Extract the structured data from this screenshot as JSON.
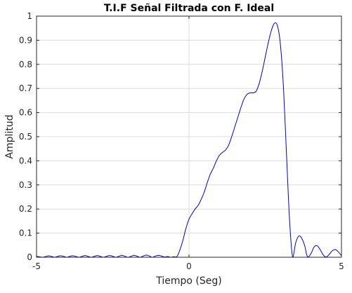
{
  "chart_data": {
    "type": "line",
    "title": "T.I.F Señal Filtrada con F. Ideal",
    "xlabel": "Tiempo (Seg)",
    "ylabel": "Amplitud",
    "xlim": [
      -5,
      5
    ],
    "ylim": [
      0,
      1
    ],
    "grid": true,
    "x_ticks": [
      "-5",
      "0",
      "5"
    ],
    "y_ticks": [
      "0",
      "0.1",
      "0.2",
      "0.3",
      "0.4",
      "0.5",
      "0.6",
      "0.7",
      "0.8",
      "0.9",
      "1"
    ],
    "x_tick_values": [
      -5,
      0,
      5
    ],
    "y_tick_values": [
      0,
      0.1,
      0.2,
      0.3,
      0.4,
      0.5,
      0.6,
      0.7,
      0.8,
      0.9,
      1
    ],
    "series": [
      {
        "color": "#0000cc",
        "x": [
          -5.0,
          -4.9,
          -4.8,
          -4.7,
          -4.6,
          -4.5,
          -4.4,
          -4.3,
          -4.2,
          -4.1,
          -4.0,
          -3.9,
          -3.8,
          -3.7,
          -3.6,
          -3.5,
          -3.4,
          -3.3,
          -3.2,
          -3.1,
          -3.0,
          -2.9,
          -2.8,
          -2.7,
          -2.6,
          -2.5,
          -2.4,
          -2.3,
          -2.2,
          -2.1,
          -2.0,
          -1.9,
          -1.8,
          -1.7,
          -1.6,
          -1.5,
          -1.4,
          -1.3,
          -1.2,
          -1.1,
          -1.0,
          -0.9,
          -0.8,
          -0.7,
          -0.6,
          -0.5,
          -0.4,
          -0.3,
          -0.2,
          -0.1,
          0.0,
          0.1,
          0.2,
          0.3,
          0.4,
          0.5,
          0.6,
          0.7,
          0.8,
          0.9,
          1.0,
          1.1,
          1.2,
          1.3,
          1.4,
          1.5,
          1.6,
          1.7,
          1.8,
          1.9,
          2.0,
          2.1,
          2.2,
          2.3,
          2.4,
          2.5,
          2.6,
          2.7,
          2.8,
          2.9,
          3.0,
          3.1,
          3.2,
          3.3,
          3.4,
          3.5,
          3.6,
          3.7,
          3.8,
          3.85,
          3.9,
          4.0,
          4.1,
          4.2,
          4.3,
          4.4,
          4.5,
          4.6,
          4.7,
          4.8,
          4.9,
          5.0
        ],
        "y": [
          0.004,
          0.002,
          0.0,
          0.003,
          0.006,
          0.003,
          0.0,
          0.004,
          0.006,
          0.003,
          0.0,
          0.004,
          0.006,
          0.003,
          0.0,
          0.004,
          0.007,
          0.003,
          0.0,
          0.004,
          0.007,
          0.003,
          0.0,
          0.004,
          0.007,
          0.004,
          0.0,
          0.004,
          0.008,
          0.004,
          0.0,
          0.004,
          0.008,
          0.004,
          0.0,
          0.005,
          0.009,
          0.005,
          0.0,
          0.005,
          0.008,
          0.005,
          0.001,
          0.003,
          0.0,
          0.002,
          0.002,
          0.03,
          0.07,
          0.12,
          0.158,
          0.18,
          0.2,
          0.215,
          0.24,
          0.27,
          0.31,
          0.345,
          0.37,
          0.4,
          0.423,
          0.435,
          0.445,
          0.465,
          0.5,
          0.54,
          0.58,
          0.62,
          0.655,
          0.675,
          0.682,
          0.682,
          0.688,
          0.72,
          0.77,
          0.83,
          0.89,
          0.94,
          0.97,
          0.96,
          0.88,
          0.7,
          0.42,
          0.15,
          0.0,
          0.06,
          0.088,
          0.078,
          0.045,
          0.015,
          0.001,
          0.015,
          0.042,
          0.048,
          0.032,
          0.01,
          0.001,
          0.012,
          0.027,
          0.032,
          0.022,
          0.006
        ]
      }
    ]
  }
}
